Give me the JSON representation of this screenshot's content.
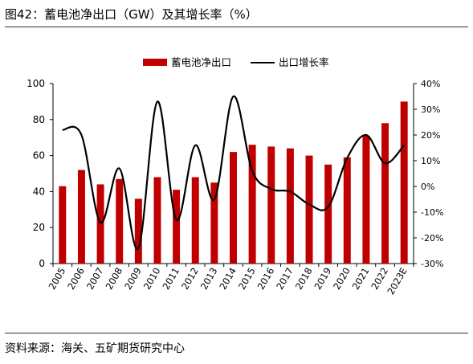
{
  "figure_title": "图42：蓄电池净出口（GW）及其增长率（%）",
  "source": "资料来源：海关、五矿期货研究中心",
  "colors": {
    "bar": "#c00000",
    "line": "#000000"
  },
  "chart_data": {
    "type": "bar+line",
    "categories": [
      "2005",
      "2006",
      "2007",
      "2008",
      "2009",
      "2010",
      "2011",
      "2012",
      "2013",
      "2014",
      "2015",
      "2016",
      "2017",
      "2018",
      "2019",
      "2020",
      "2021",
      "2022",
      "2023E"
    ],
    "series": [
      {
        "name": "蓄电池净出口",
        "type": "bar",
        "axis": "left",
        "values": [
          43,
          52,
          44,
          47,
          36,
          48,
          41,
          48,
          45,
          62,
          66,
          65,
          64,
          60,
          55,
          59,
          71,
          78,
          90
        ]
      },
      {
        "name": "出口增长率",
        "type": "line",
        "axis": "right",
        "unit": "%",
        "values": [
          22,
          20,
          -14,
          7,
          -24,
          33,
          -13,
          16,
          -5,
          35,
          6,
          -1,
          -2,
          -7,
          -8,
          11,
          20,
          9,
          16
        ]
      }
    ],
    "y_left": {
      "min": 0,
      "max": 100,
      "ticks": [
        0,
        20,
        40,
        60,
        80,
        100
      ]
    },
    "y_right": {
      "min": -30,
      "max": 40,
      "ticks": [
        "-30%",
        "-20%",
        "-10%",
        "0%",
        "10%",
        "20%",
        "30%",
        "40%"
      ]
    },
    "legend_position": "top-center",
    "grid": false
  }
}
